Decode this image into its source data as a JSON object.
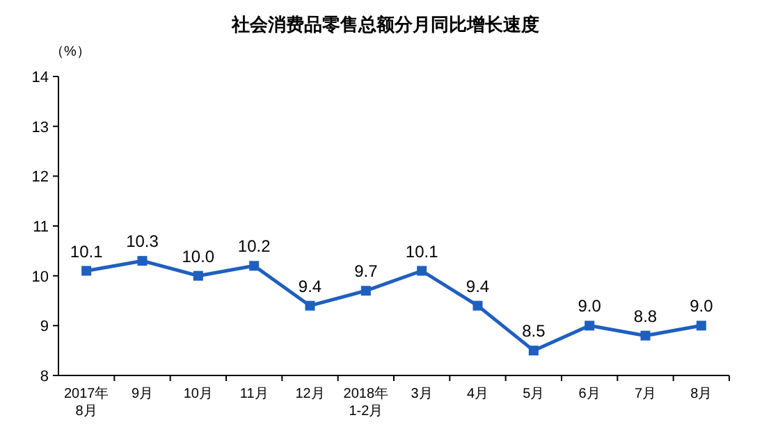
{
  "chart_data": {
    "type": "line",
    "title": "社会消费品零售总额分月同比增长速度",
    "ylabel": "（%）",
    "categories": [
      "2017年\n8月",
      "9月",
      "10月",
      "11月",
      "12月",
      "2018年\n1-2月",
      "3月",
      "4月",
      "5月",
      "6月",
      "7月",
      "8月"
    ],
    "series": [
      {
        "color": "#1f5fbf",
        "values": [
          10.1,
          10.3,
          10.0,
          10.2,
          9.4,
          9.7,
          10.1,
          9.4,
          8.5,
          9.0,
          8.8,
          9.0
        ],
        "value_labels": [
          "10.1",
          "10.3",
          "10.0",
          "10.2",
          "9.4",
          "9.7",
          "10.1",
          "9.4",
          "8.5",
          "9.0",
          "8.8",
          "9.0"
        ]
      }
    ],
    "ylim": [
      8,
      14
    ],
    "yticks": [
      8,
      9,
      10,
      11,
      12,
      13,
      14
    ],
    "marker": "square",
    "line_style": "solid",
    "grid": false
  }
}
